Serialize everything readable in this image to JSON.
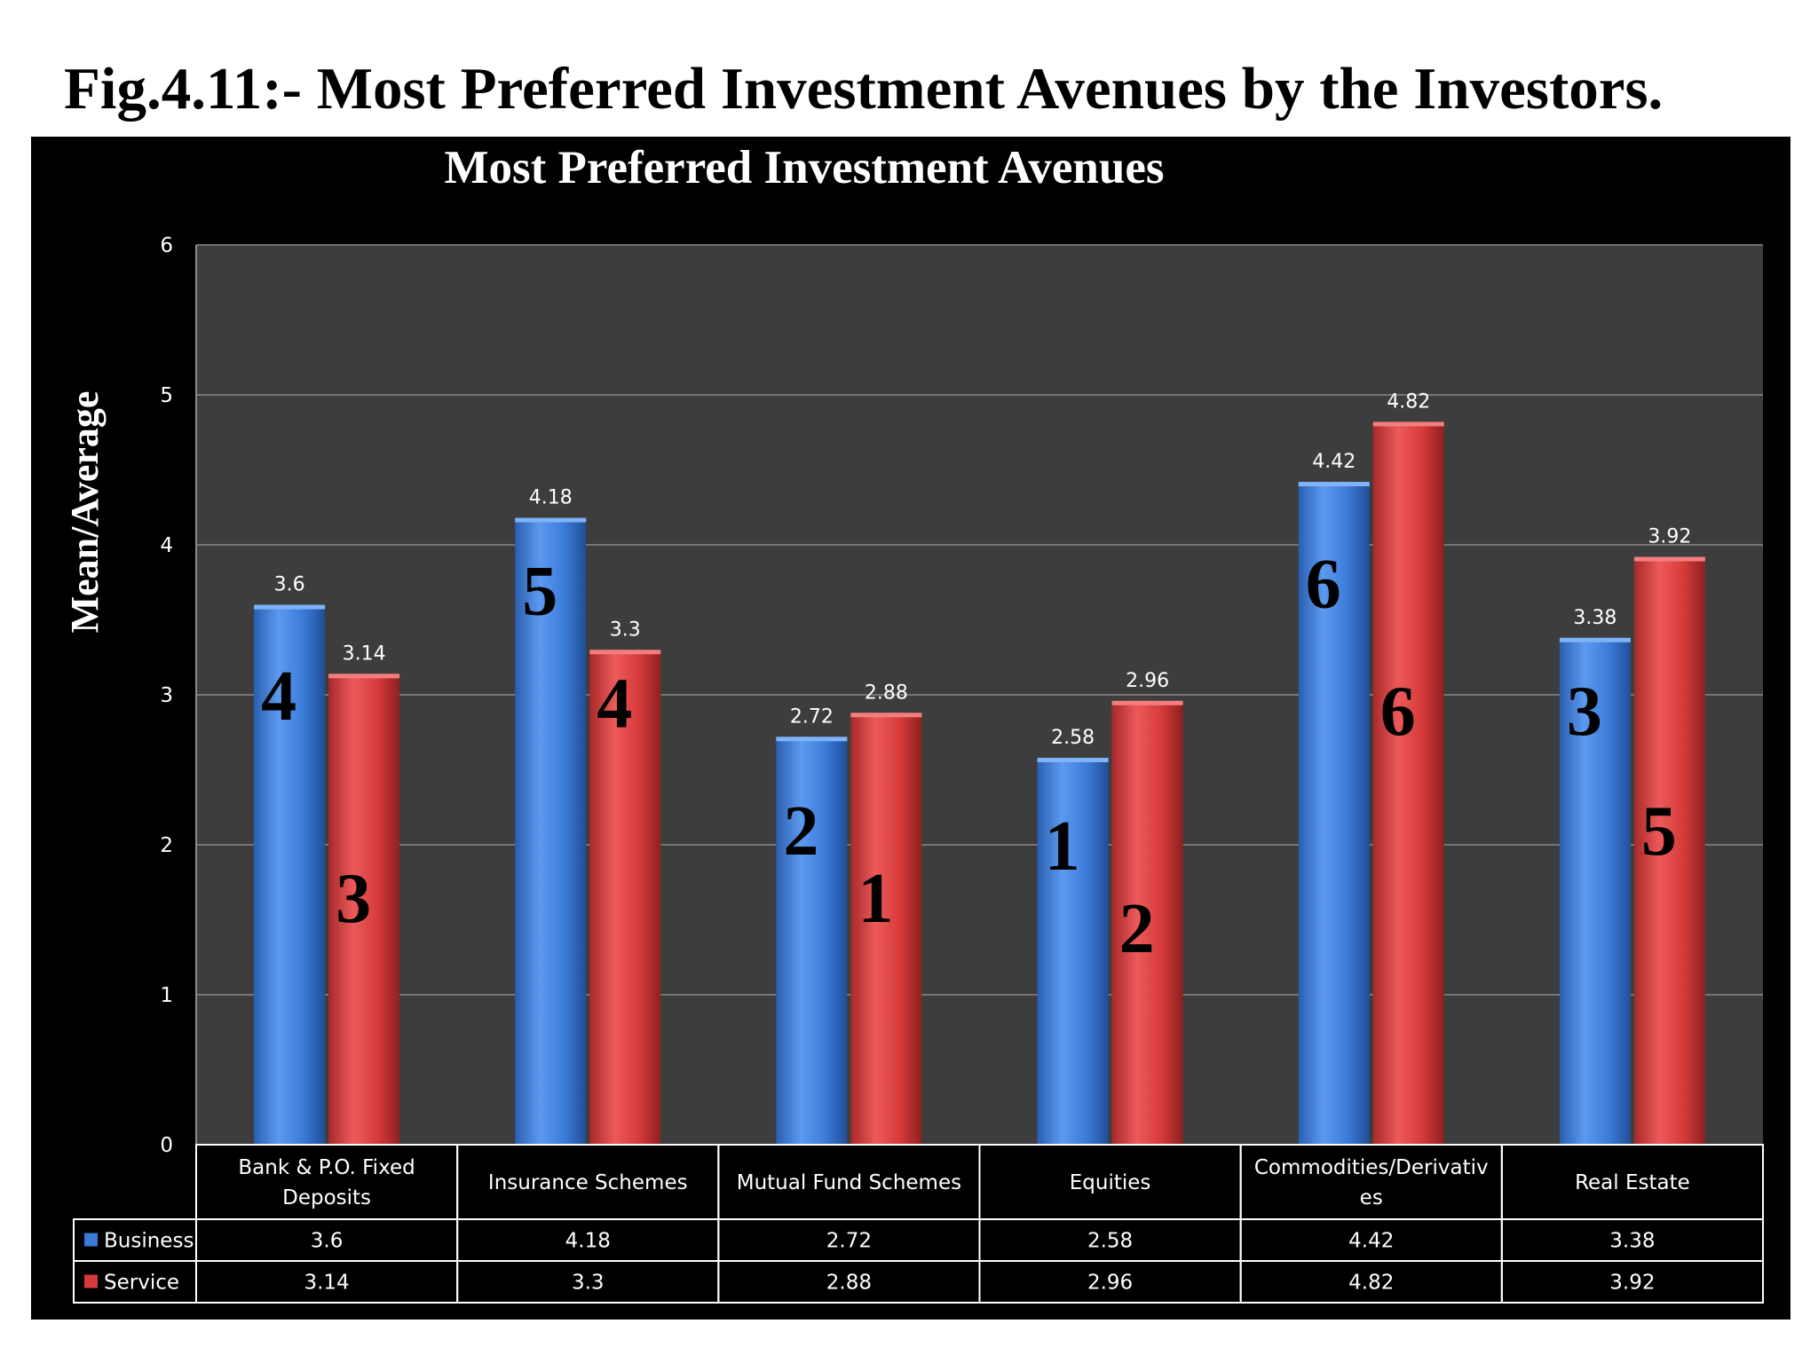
{
  "figure": {
    "caption": "Fig.4.11:- Most Preferred Investment Avenues by the Investors."
  },
  "colors": {
    "panel_background": "#000000",
    "plot_background": "#3d3d3d",
    "business": "#3b7ad8",
    "service": "#d63a3a",
    "text": "#ffffff",
    "rank_label": "#000000"
  },
  "chart_data": {
    "type": "bar",
    "title": "Most Preferred Investment Avenues",
    "ylabel": "Mean/Average",
    "xlabel": "",
    "ylim": [
      0,
      6
    ],
    "yticks": [
      "0",
      "1",
      "2",
      "3",
      "4",
      "5",
      "6"
    ],
    "grid": true,
    "legend": "data-table",
    "categories": [
      "Bank & P.O. Fixed Deposits",
      "Insurance Schemes",
      "Mutual Fund Schemes",
      "Equities",
      "Commodities/Derivatives",
      "Real Estate"
    ],
    "category_label_lines": [
      [
        "Bank & P.O. Fixed",
        "Deposits"
      ],
      [
        "Insurance Schemes"
      ],
      [
        "Mutual Fund Schemes"
      ],
      [
        "Equities"
      ],
      [
        "Commodities/Derivativ",
        "es"
      ],
      [
        "Real Estate"
      ]
    ],
    "series": [
      {
        "name": "Business",
        "values": [
          3.6,
          4.18,
          2.72,
          2.58,
          4.42,
          3.38
        ],
        "labels": [
          "3.6",
          "4.18",
          "2.72",
          "2.58",
          "4.42",
          "3.38"
        ],
        "ranks": [
          "4",
          "5",
          "2",
          "1",
          "6",
          "3"
        ],
        "rank_positions": [
          3.0,
          3.7,
          2.1,
          2.0,
          3.75,
          2.9
        ]
      },
      {
        "name": "Service",
        "values": [
          3.14,
          3.3,
          2.88,
          2.96,
          4.82,
          3.92
        ],
        "labels": [
          "3.14",
          "3.3",
          "2.88",
          "2.96",
          "4.82",
          "3.92"
        ],
        "ranks": [
          "3",
          "4",
          "1",
          "2",
          "6",
          "5"
        ],
        "rank_positions": [
          1.65,
          2.95,
          1.65,
          1.45,
          2.9,
          2.1
        ]
      }
    ]
  }
}
